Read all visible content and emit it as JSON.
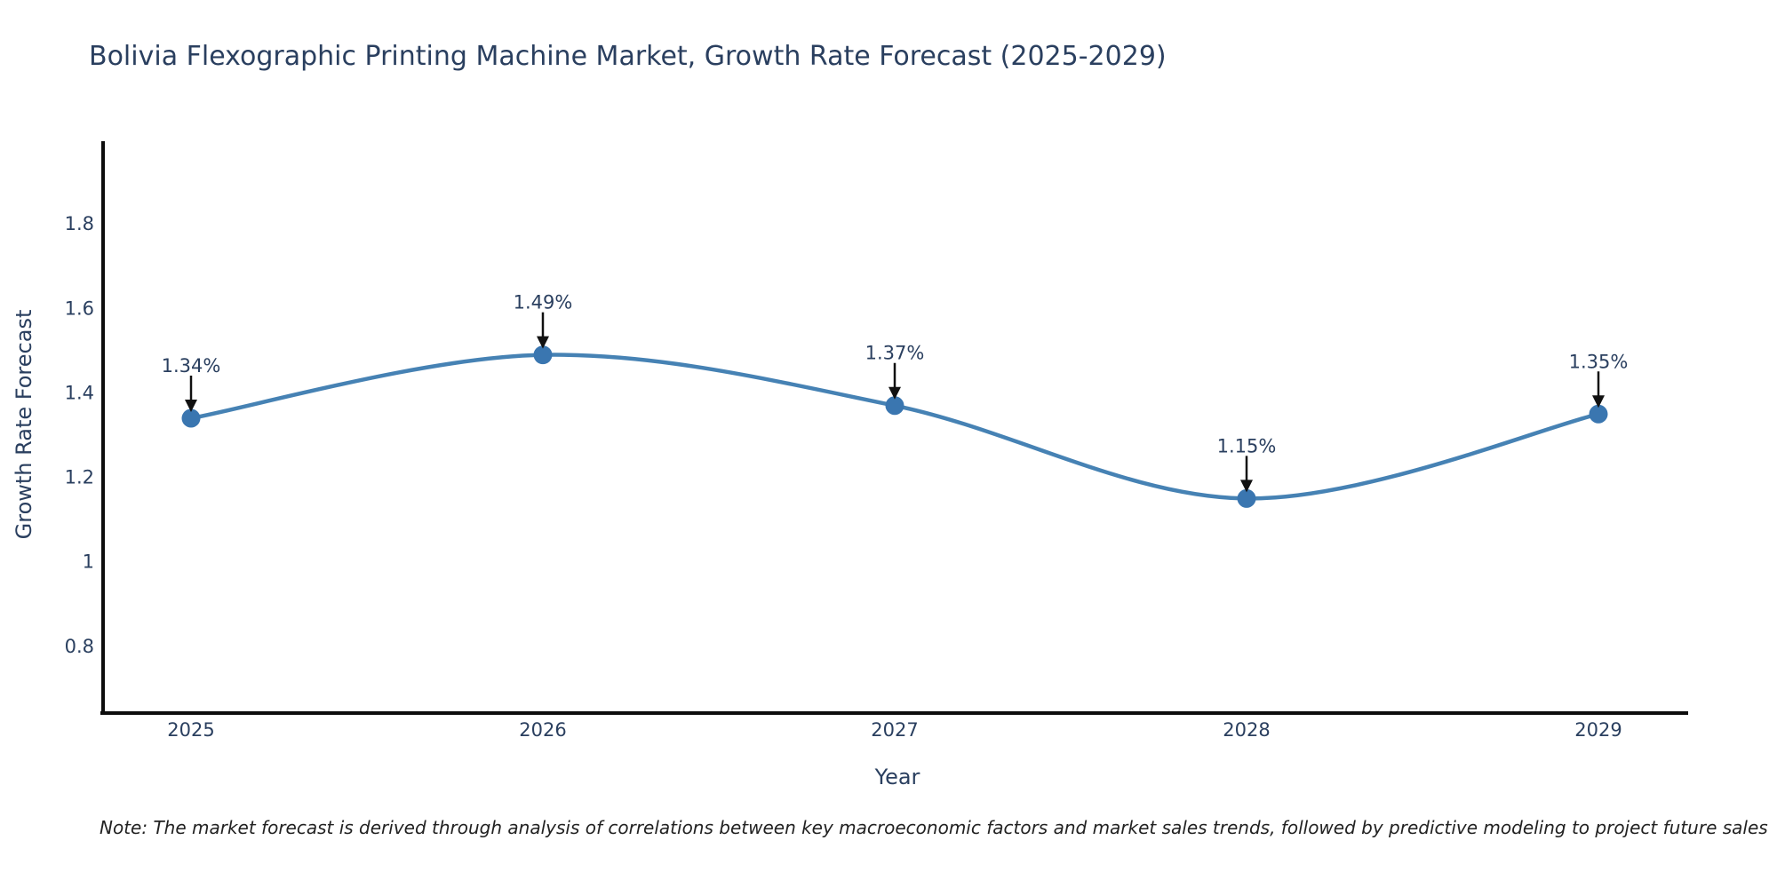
{
  "note": "Note: The market forecast is derived through analysis of correlations between key macroeconomic factors and market sales trends, followed by predictive modeling to project future sales",
  "chart_data": {
    "type": "line",
    "title": "Bolivia Flexographic Printing Machine Market, Growth Rate Forecast (2025-2029)",
    "line_shape": "spline",
    "categories": [
      "2025",
      "2026",
      "2027",
      "2028",
      "2029"
    ],
    "x": [
      2025,
      2026,
      2027,
      2028,
      2029
    ],
    "y": [
      1.34,
      1.49,
      1.37,
      1.15,
      1.35
    ],
    "point_labels": [
      "1.34%",
      "1.49%",
      "1.37%",
      "1.15%",
      "1.35%"
    ],
    "xlabel": "Year",
    "ylabel": "Growth Rate Forecast",
    "yticks": [
      0.8,
      1,
      1.2,
      1.4,
      1.6,
      1.8
    ],
    "ytick_labels": [
      "0.8",
      "1",
      "1.2",
      "1.4",
      "1.6",
      "1.8"
    ],
    "ylim": [
      0.642,
      1.996
    ],
    "grid": false,
    "legend": "none",
    "colors": {
      "line": "#4682b4",
      "marker": "#3a76b0",
      "axis": "#0d0d0d",
      "text": "#2a3f5f",
      "annotation_text": "#2a3f5f",
      "arrow": "#111111",
      "note_text": "#222222",
      "background": "#ffffff"
    }
  }
}
